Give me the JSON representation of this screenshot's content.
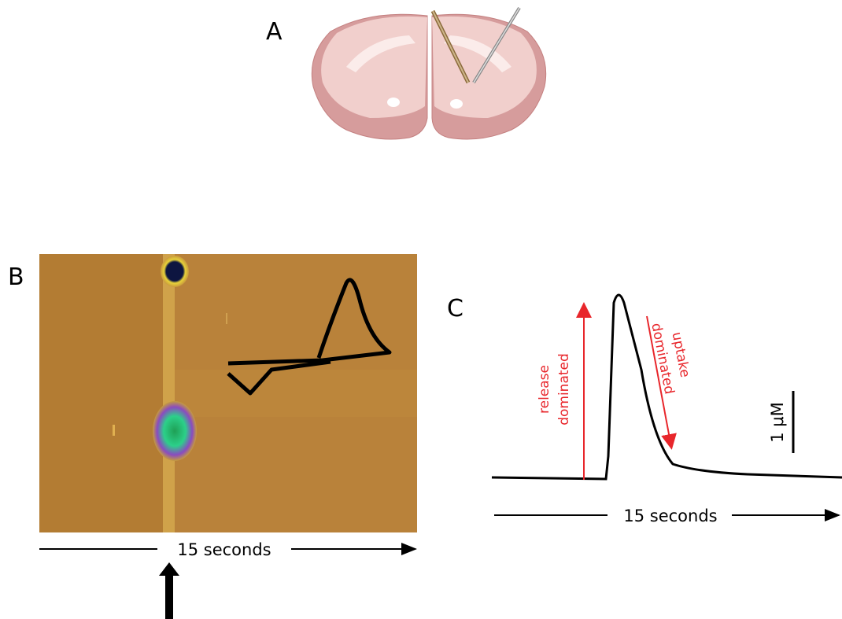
{
  "panel_a": {
    "label": "A"
  },
  "panel_b": {
    "label": "B",
    "time_label": "15 seconds"
  },
  "panel_c": {
    "label": "C",
    "time_label": "15 seconds",
    "release_label": [
      "release",
      "dominated"
    ],
    "uptake_label": [
      "uptake",
      "dominated"
    ],
    "scale_label": "1 μM"
  }
}
